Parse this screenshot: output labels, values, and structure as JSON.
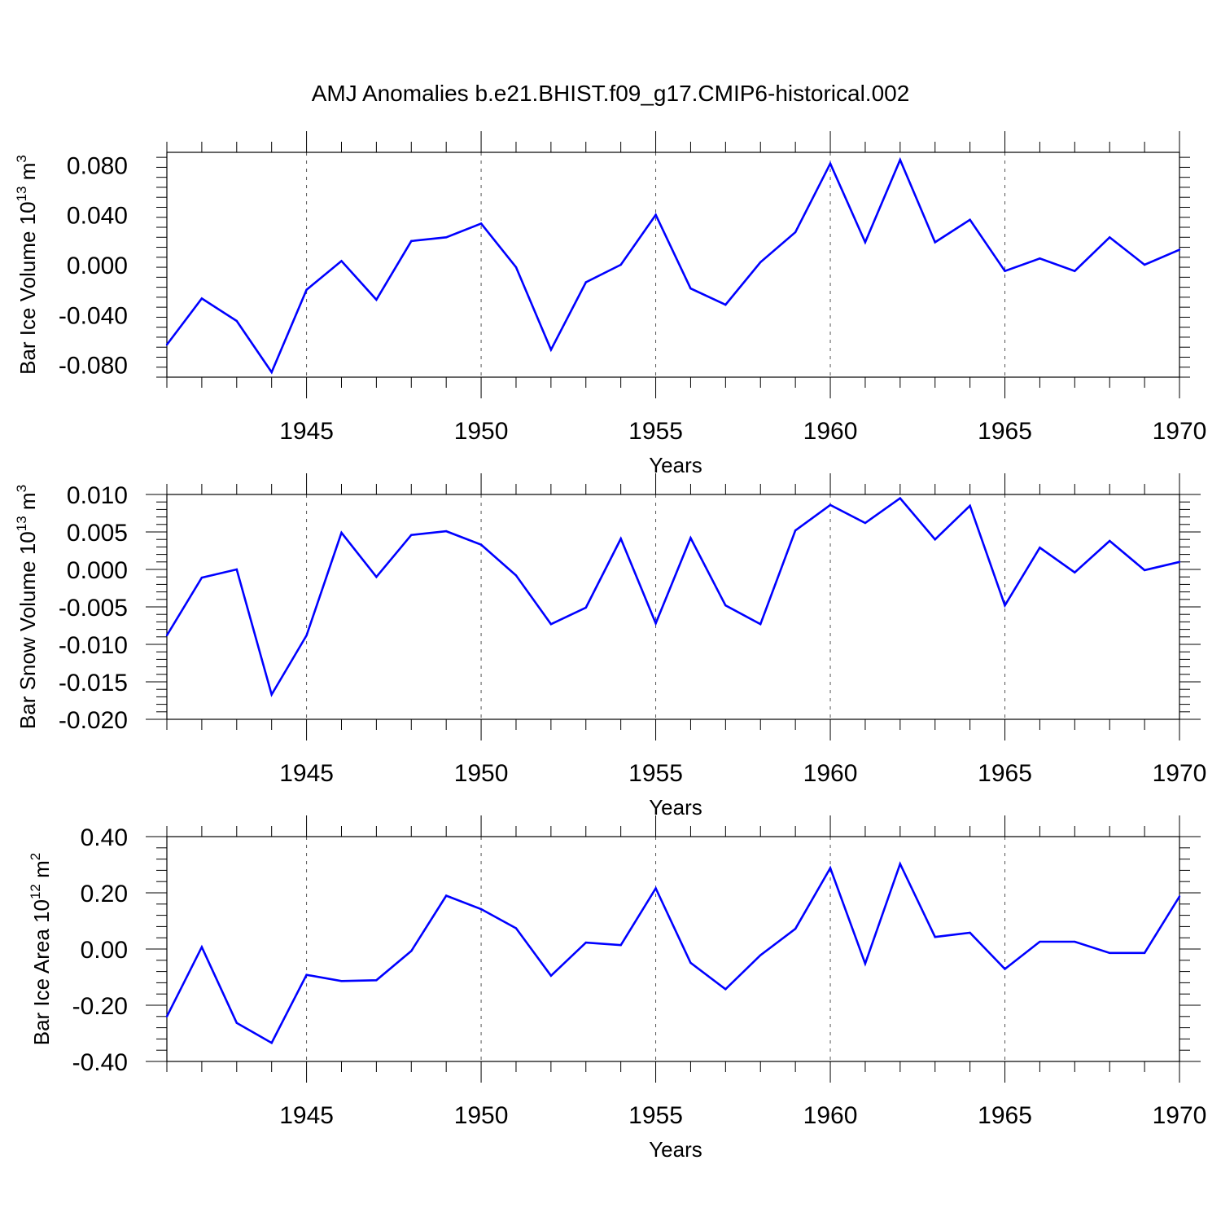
{
  "title": "AMJ Anomalies b.e21.BHIST.f09_g17.CMIP6-historical.002",
  "line_color": "#0000ff",
  "chart_data": [
    {
      "type": "line",
      "title": "",
      "xlabel": "Years",
      "ylabel": {
        "base": "Bar Ice Volume 10",
        "exp1": "13",
        "unit": " m",
        "exp2": "3"
      },
      "xlim": [
        1941,
        1970
      ],
      "ylim": [
        -0.09,
        0.09
      ],
      "xticks": [
        1945,
        1950,
        1955,
        1960,
        1965,
        1970
      ],
      "yticks": [
        -0.08,
        -0.04,
        0.0,
        0.04,
        0.08
      ],
      "ytick_labels": [
        "-0.080",
        "-0.040",
        "0.000",
        "0.040",
        "0.080"
      ],
      "grid": "dashed vertical at major x ticks",
      "series": [
        {
          "name": "Bar Ice Volume",
          "x": [
            1941,
            1942,
            1943,
            1944,
            1945,
            1946,
            1947,
            1948,
            1949,
            1950,
            1951,
            1952,
            1953,
            1954,
            1955,
            1956,
            1957,
            1958,
            1959,
            1960,
            1961,
            1962,
            1963,
            1964,
            1965,
            1966,
            1967,
            1968,
            1969,
            1970
          ],
          "values": [
            -0.064,
            -0.027,
            -0.045,
            -0.086,
            -0.02,
            0.003,
            -0.028,
            0.019,
            0.022,
            0.033,
            -0.002,
            -0.068,
            -0.014,
            0.0,
            0.04,
            -0.019,
            -0.032,
            0.002,
            0.026,
            0.081,
            0.018,
            0.084,
            0.018,
            0.036,
            -0.005,
            0.005,
            -0.005,
            0.022,
            0.0,
            0.012
          ]
        }
      ]
    },
    {
      "type": "line",
      "title": "",
      "xlabel": "Years",
      "ylabel": {
        "base": "Bar Snow Volume 10",
        "exp1": "13",
        "unit": " m",
        "exp2": "3"
      },
      "xlim": [
        1941,
        1970
      ],
      "ylim": [
        -0.02,
        0.01
      ],
      "xticks": [
        1945,
        1950,
        1955,
        1960,
        1965,
        1970
      ],
      "yticks": [
        -0.02,
        -0.015,
        -0.01,
        -0.005,
        0.0,
        0.005,
        0.01
      ],
      "ytick_labels": [
        "-0.020",
        "-0.015",
        "-0.010",
        "-0.005",
        "0.000",
        "0.005",
        "0.010"
      ],
      "grid": "dashed vertical at major x ticks",
      "series": [
        {
          "name": "Bar Snow Volume",
          "x": [
            1941,
            1942,
            1943,
            1944,
            1945,
            1946,
            1947,
            1948,
            1949,
            1950,
            1951,
            1952,
            1953,
            1954,
            1955,
            1956,
            1957,
            1958,
            1959,
            1960,
            1961,
            1962,
            1963,
            1964,
            1965,
            1966,
            1967,
            1968,
            1969,
            1970
          ],
          "values": [
            -0.0088,
            -0.0011,
            0.0,
            -0.0167,
            -0.0088,
            0.0049,
            -0.001,
            0.0046,
            0.0051,
            0.0033,
            -0.0008,
            -0.0073,
            -0.0051,
            0.0041,
            -0.0072,
            0.0042,
            -0.0048,
            -0.0073,
            0.0052,
            0.0086,
            0.0062,
            0.0095,
            0.004,
            0.0085,
            -0.0048,
            0.0029,
            -0.0004,
            0.0038,
            -0.0001,
            0.001
          ]
        }
      ]
    },
    {
      "type": "line",
      "title": "",
      "xlabel": "Years",
      "ylabel": {
        "base": "Bar Ice Area 10",
        "exp1": "12",
        "unit": " m",
        "exp2": "2"
      },
      "xlim": [
        1941,
        1970
      ],
      "ylim": [
        -0.4,
        0.4
      ],
      "xticks": [
        1945,
        1950,
        1955,
        1960,
        1965,
        1970
      ],
      "yticks": [
        -0.4,
        -0.2,
        0.0,
        0.2,
        0.4
      ],
      "ytick_labels": [
        "-0.40",
        "-0.20",
        "0.00",
        "0.20",
        "0.40"
      ],
      "grid": "dashed vertical at major x ticks",
      "series": [
        {
          "name": "Bar Ice Area",
          "x": [
            1941,
            1942,
            1943,
            1944,
            1945,
            1946,
            1947,
            1948,
            1949,
            1950,
            1951,
            1952,
            1953,
            1954,
            1955,
            1956,
            1957,
            1958,
            1959,
            1960,
            1961,
            1962,
            1963,
            1964,
            1965,
            1966,
            1967,
            1968,
            1969,
            1970
          ],
          "values": [
            -0.24,
            0.007,
            -0.263,
            -0.334,
            -0.092,
            -0.114,
            -0.111,
            -0.007,
            0.19,
            0.142,
            0.074,
            -0.095,
            0.023,
            0.014,
            0.216,
            -0.049,
            -0.143,
            -0.022,
            0.072,
            0.288,
            -0.052,
            0.303,
            0.043,
            0.058,
            -0.071,
            0.026,
            0.026,
            -0.014,
            -0.014,
            0.187
          ]
        }
      ]
    }
  ]
}
